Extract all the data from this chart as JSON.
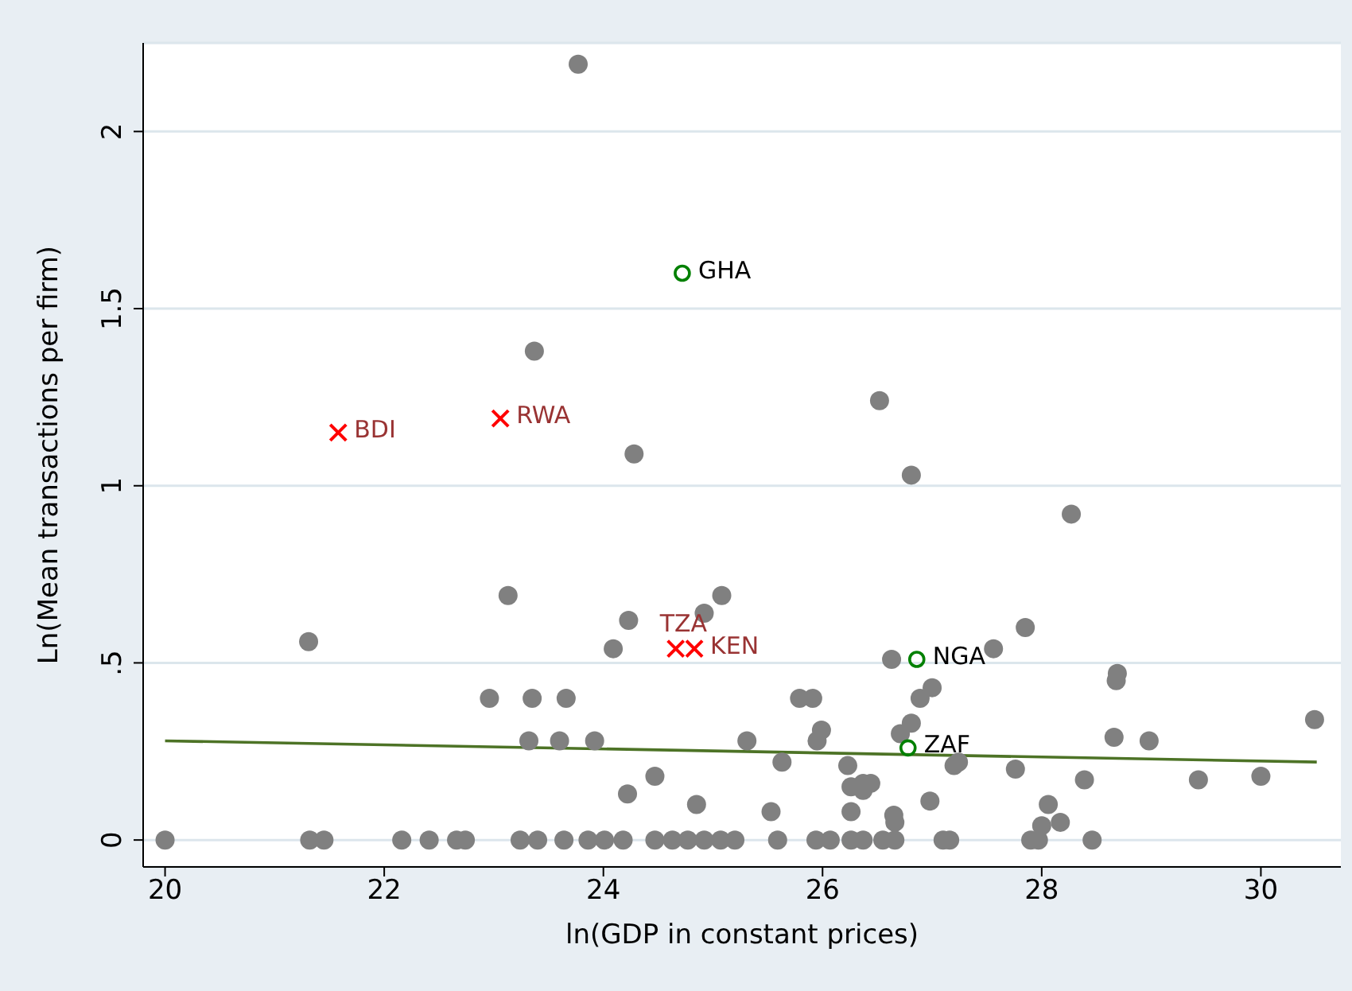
{
  "chart_data": {
    "type": "scatter",
    "xlabel": "ln(GDP in constant  prices)",
    "ylabel": "Ln(Mean transactions per firm)",
    "xlim": [
      19.8,
      30.73
    ],
    "xticks": [
      20,
      22,
      24,
      26,
      28,
      30
    ],
    "ylim": [
      -0.076,
      2.25
    ],
    "yticks": [
      {
        "value": 0,
        "label": "0"
      },
      {
        "value": 0.5,
        "label": ".5"
      },
      {
        "value": 1,
        "label": "1"
      },
      {
        "value": 1.5,
        "label": "1.5"
      },
      {
        "value": 2,
        "label": "2"
      }
    ],
    "grid": "y",
    "series": [
      {
        "marker": "circle",
        "color": "#808080",
        "x": [
          23.77,
          23.37,
          24.28,
          26.52,
          26.81,
          28.27,
          21.31,
          23.13,
          24.23,
          24.09,
          24.92,
          25.08,
          22.96,
          23.35,
          23.66,
          23.32,
          23.6,
          23.92,
          24.22,
          24.47,
          24.85,
          25.31,
          27.85,
          27.56,
          26.63,
          27.0,
          26.89,
          25.79,
          25.91,
          28.69,
          28.68,
          30.49,
          25.99,
          25.95,
          26.81,
          26.71,
          28.66,
          28.98,
          25.63,
          26.23,
          27.24,
          27.2,
          27.76,
          28.39,
          29.43,
          30.0,
          26.26,
          26.37,
          26.44,
          26.37,
          25.53,
          26.26,
          26.65,
          26.66,
          26.98,
          28.06,
          28.0,
          28.17,
          25.2,
          25.59,
          25.94,
          26.07,
          26.26,
          26.37,
          26.55,
          26.66,
          27.1,
          27.16,
          27.9,
          27.97,
          28.46,
          20.0,
          21.32,
          21.45,
          22.16,
          22.41,
          22.66,
          22.74,
          23.24,
          23.4,
          23.64,
          23.86,
          24.01,
          24.18,
          24.47,
          24.63,
          24.77,
          24.92,
          25.07
        ],
        "values": [
          2.19,
          1.38,
          1.09,
          1.24,
          1.03,
          0.92,
          0.56,
          0.69,
          0.62,
          0.54,
          0.64,
          0.69,
          0.4,
          0.4,
          0.4,
          0.28,
          0.28,
          0.28,
          0.13,
          0.18,
          0.1,
          0.28,
          0.6,
          0.54,
          0.51,
          0.43,
          0.4,
          0.4,
          0.4,
          0.47,
          0.45,
          0.34,
          0.31,
          0.28,
          0.33,
          0.3,
          0.29,
          0.28,
          0.22,
          0.21,
          0.22,
          0.21,
          0.2,
          0.17,
          0.17,
          0.18,
          0.15,
          0.16,
          0.16,
          0.14,
          0.08,
          0.08,
          0.07,
          0.05,
          0.11,
          0.1,
          0.04,
          0.05,
          0,
          0,
          0,
          0,
          0,
          0,
          0,
          0,
          0,
          0,
          0,
          0,
          0,
          0,
          0,
          0,
          0,
          0,
          0,
          0,
          0,
          0,
          0,
          0,
          0,
          0,
          0,
          0,
          0,
          0,
          0
        ]
      },
      {
        "type": "scatter",
        "marker": "cross",
        "color": "#ff0000",
        "x": [
          21.58,
          23.06,
          24.66,
          24.83
        ],
        "values": [
          1.15,
          1.19,
          0.54,
          0.54
        ],
        "value_labels": [
          "BDI",
          "RWA",
          "TZA",
          "KEN"
        ]
      },
      {
        "type": "scatter",
        "marker": "circle",
        "color": "#008000",
        "x": [
          24.72,
          26.86,
          26.78
        ],
        "values": [
          1.6,
          0.51,
          0.26
        ],
        "value_labels": [
          "GHA",
          "NGA",
          "ZAF"
        ]
      },
      {
        "type": "line",
        "color": "#4d7326",
        "x": [
          20,
          30.51
        ],
        "values": [
          0.28,
          0.22
        ]
      }
    ]
  }
}
